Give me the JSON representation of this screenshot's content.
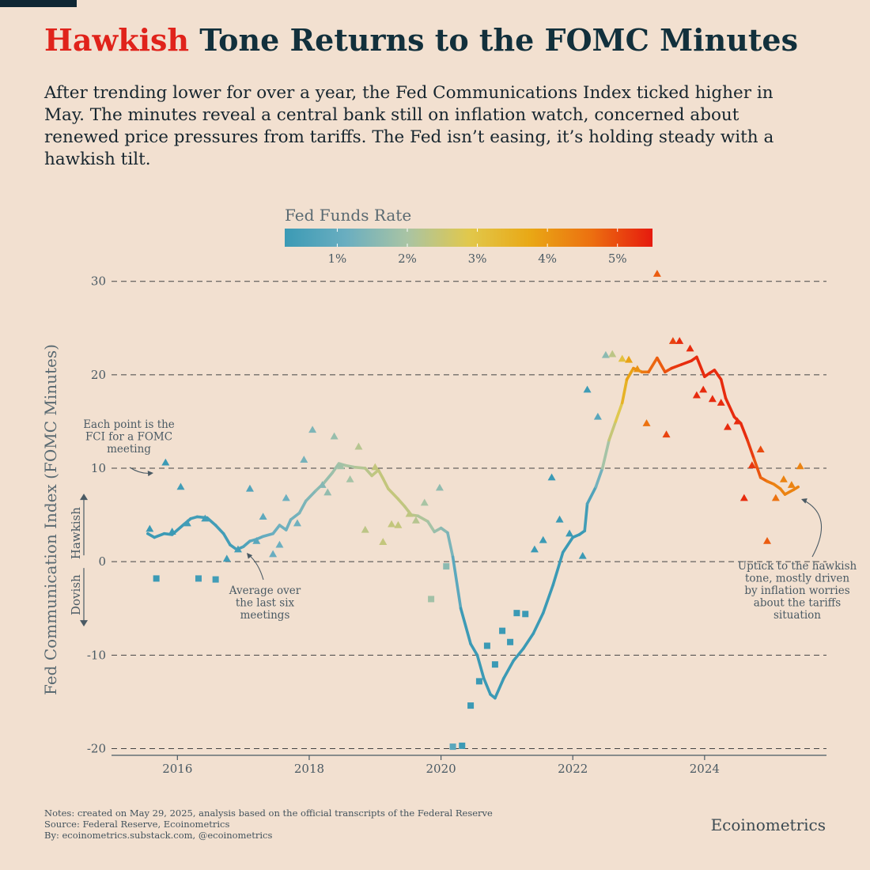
{
  "header": {
    "title_highlight": "Hawkish",
    "title_rest": " Tone Returns to the FOMC Minutes",
    "subtitle": "After trending lower for over a year, the Fed Communications Index ticked higher in May. The minutes reveal a central bank still on inflation watch, concerned about renewed price pressures from tariffs. The Fed isn’t easing, it’s holding steady with a hawkish tilt."
  },
  "colors": {
    "title_highlight": "#e0231b",
    "background": "#f2e0d0",
    "text": "#1f3442",
    "gridline": "#444444",
    "annotation": "#4a5a64",
    "scale": [
      "#3b9ab5",
      "#6aaec0",
      "#a9c4a4",
      "#e1c84c",
      "#e9a815",
      "#ec7010",
      "#e61a0e"
    ]
  },
  "chart_data": {
    "type": "line",
    "ylabel": "Fed Communication Index (FOMC Minutes)",
    "xlabel": "",
    "xlim": [
      2015.0,
      2025.85
    ],
    "ylim": [
      -22.5,
      31.5
    ],
    "grid": true,
    "x_ticks": [
      2016,
      2018,
      2020,
      2022,
      2024
    ],
    "x_tick_labels": [
      "2016",
      "2018",
      "2020",
      "2022",
      "2024"
    ],
    "y_ticks": [
      30,
      20,
      10,
      0,
      -10,
      -20
    ],
    "y_tick_labels": [
      "30",
      "20",
      "10",
      "0",
      "-10",
      "-20"
    ],
    "color_scale": {
      "title": "Fed Funds Rate",
      "range": [
        0.25,
        5.5
      ],
      "ticks": [
        1,
        2,
        3,
        4,
        5
      ],
      "tick_labels": [
        "1%",
        "2%",
        "3%",
        "4%",
        "5%"
      ]
    },
    "direction_labels": {
      "hawkish": "Hawkish",
      "dovish": "Dovish"
    },
    "series": [
      {
        "name": "Average over the last six meetings",
        "type": "line",
        "points": [
          [
            2015.55,
            3.0,
            0.13
          ],
          [
            2015.65,
            2.6,
            0.13
          ],
          [
            2015.8,
            3.0,
            0.2
          ],
          [
            2015.92,
            2.9,
            0.25
          ],
          [
            2016.1,
            4.0,
            0.38
          ],
          [
            2016.2,
            4.6,
            0.38
          ],
          [
            2016.3,
            4.8,
            0.38
          ],
          [
            2016.45,
            4.7,
            0.38
          ],
          [
            2016.58,
            3.9,
            0.38
          ],
          [
            2016.7,
            3.0,
            0.38
          ],
          [
            2016.8,
            1.8,
            0.4
          ],
          [
            2016.9,
            1.3,
            0.41
          ],
          [
            2017.0,
            1.6,
            0.6
          ],
          [
            2017.1,
            2.2,
            0.7
          ],
          [
            2017.2,
            2.4,
            0.9
          ],
          [
            2017.3,
            2.7,
            0.95
          ],
          [
            2017.45,
            3.0,
            1.1
          ],
          [
            2017.55,
            3.9,
            1.2
          ],
          [
            2017.65,
            3.4,
            1.2
          ],
          [
            2017.72,
            4.5,
            1.2
          ],
          [
            2017.85,
            5.2,
            1.3
          ],
          [
            2017.95,
            6.5,
            1.4
          ],
          [
            2018.1,
            7.6,
            1.5
          ],
          [
            2018.22,
            8.4,
            1.7
          ],
          [
            2018.35,
            9.5,
            1.8
          ],
          [
            2018.45,
            10.5,
            1.9
          ],
          [
            2018.55,
            10.3,
            1.95
          ],
          [
            2018.7,
            10.1,
            2.1
          ],
          [
            2018.85,
            10.0,
            2.2
          ],
          [
            2018.95,
            9.2,
            2.3
          ],
          [
            2019.05,
            9.8,
            2.4
          ],
          [
            2019.12,
            8.9,
            2.4
          ],
          [
            2019.2,
            7.8,
            2.4
          ],
          [
            2019.35,
            6.7,
            2.4
          ],
          [
            2019.45,
            5.9,
            2.35
          ],
          [
            2019.55,
            5.0,
            2.3
          ],
          [
            2019.65,
            4.9,
            2.2
          ],
          [
            2019.8,
            4.3,
            2.0
          ],
          [
            2019.9,
            3.2,
            1.9
          ],
          [
            2020.0,
            3.6,
            1.65
          ],
          [
            2020.1,
            3.1,
            1.5
          ],
          [
            2020.18,
            0.5,
            1.2
          ],
          [
            2020.3,
            -5.0,
            0.5
          ],
          [
            2020.45,
            -8.8,
            0.08
          ],
          [
            2020.55,
            -10.0,
            0.08
          ],
          [
            2020.65,
            -12.5,
            0.08
          ],
          [
            2020.75,
            -14.2,
            0.08
          ],
          [
            2020.82,
            -14.6,
            0.08
          ],
          [
            2020.95,
            -12.5,
            0.08
          ],
          [
            2021.1,
            -10.6,
            0.08
          ],
          [
            2021.25,
            -9.3,
            0.08
          ],
          [
            2021.4,
            -7.7,
            0.08
          ],
          [
            2021.55,
            -5.5,
            0.08
          ],
          [
            2021.7,
            -2.5,
            0.08
          ],
          [
            2021.85,
            1.0,
            0.08
          ],
          [
            2022.0,
            2.6,
            0.08
          ],
          [
            2022.1,
            2.9,
            0.12
          ],
          [
            2022.18,
            3.3,
            0.33
          ],
          [
            2022.22,
            6.2,
            0.4
          ],
          [
            2022.35,
            8.0,
            0.9
          ],
          [
            2022.45,
            10.0,
            1.6
          ],
          [
            2022.55,
            13.0,
            2.3
          ],
          [
            2022.65,
            15.0,
            2.6
          ],
          [
            2022.75,
            17.0,
            3.1
          ],
          [
            2022.82,
            19.5,
            3.85
          ],
          [
            2022.92,
            20.7,
            3.85
          ],
          [
            2023.05,
            20.3,
            4.4
          ],
          [
            2023.15,
            20.3,
            4.6
          ],
          [
            2023.28,
            21.8,
            4.83
          ],
          [
            2023.4,
            20.3,
            4.83
          ],
          [
            2023.5,
            20.7,
            5.08
          ],
          [
            2023.65,
            21.1,
            5.33
          ],
          [
            2023.8,
            21.5,
            5.33
          ],
          [
            2023.88,
            21.9,
            5.33
          ],
          [
            2024.0,
            19.8,
            5.33
          ],
          [
            2024.08,
            20.2,
            5.33
          ],
          [
            2024.15,
            20.5,
            5.33
          ],
          [
            2024.25,
            19.5,
            5.33
          ],
          [
            2024.32,
            17.5,
            5.33
          ],
          [
            2024.45,
            15.5,
            5.33
          ],
          [
            2024.55,
            14.8,
            5.33
          ],
          [
            2024.65,
            13.0,
            5.33
          ],
          [
            2024.75,
            11.0,
            5.0
          ],
          [
            2024.85,
            9.0,
            4.83
          ],
          [
            2024.95,
            8.6,
            4.6
          ],
          [
            2025.05,
            8.3,
            4.33
          ],
          [
            2025.15,
            7.8,
            4.33
          ],
          [
            2025.22,
            7.2,
            4.33
          ],
          [
            2025.35,
            7.7,
            4.33
          ],
          [
            2025.42,
            8.0,
            4.33
          ]
        ]
      },
      {
        "name": "FCI for each FOMC meeting",
        "type": "scatter",
        "points": [
          [
            2015.58,
            3.5,
            0.13
          ],
          [
            2015.68,
            -1.8,
            0.13
          ],
          [
            2015.82,
            10.6,
            0.2
          ],
          [
            2015.92,
            3.2,
            0.25
          ],
          [
            2016.05,
            8.0,
            0.38
          ],
          [
            2016.15,
            4.1,
            0.38
          ],
          [
            2016.32,
            -1.8,
            0.38
          ],
          [
            2016.42,
            4.6,
            0.38
          ],
          [
            2016.58,
            -1.9,
            0.38
          ],
          [
            2016.75,
            0.3,
            0.38
          ],
          [
            2016.92,
            1.3,
            0.41
          ],
          [
            2017.1,
            7.8,
            0.7
          ],
          [
            2017.2,
            2.2,
            0.8
          ],
          [
            2017.3,
            4.8,
            0.9
          ],
          [
            2017.45,
            0.8,
            1.1
          ],
          [
            2017.55,
            1.8,
            1.15
          ],
          [
            2017.65,
            6.8,
            1.15
          ],
          [
            2017.82,
            4.1,
            1.2
          ],
          [
            2017.92,
            10.9,
            1.3
          ],
          [
            2018.05,
            14.1,
            1.4
          ],
          [
            2018.2,
            8.2,
            1.5
          ],
          [
            2018.28,
            7.4,
            1.7
          ],
          [
            2018.38,
            13.4,
            1.75
          ],
          [
            2018.48,
            10.2,
            1.9
          ],
          [
            2018.62,
            8.8,
            1.95
          ],
          [
            2018.75,
            12.3,
            2.2
          ],
          [
            2018.85,
            3.4,
            2.3
          ],
          [
            2019.0,
            10.1,
            2.4
          ],
          [
            2019.12,
            2.1,
            2.4
          ],
          [
            2019.25,
            4.0,
            2.4
          ],
          [
            2019.35,
            3.9,
            2.4
          ],
          [
            2019.52,
            5.1,
            2.35
          ],
          [
            2019.62,
            4.4,
            2.2
          ],
          [
            2019.75,
            6.3,
            2.0
          ],
          [
            2019.85,
            -4.0,
            1.9
          ],
          [
            2019.98,
            7.9,
            1.65
          ],
          [
            2020.08,
            -0.5,
            1.6
          ],
          [
            2020.18,
            -19.8,
            0.8
          ],
          [
            2020.32,
            -19.7,
            0.08
          ],
          [
            2020.45,
            -15.4,
            0.08
          ],
          [
            2020.58,
            -12.8,
            0.08
          ],
          [
            2020.7,
            -9.0,
            0.08
          ],
          [
            2020.82,
            -11.0,
            0.08
          ],
          [
            2020.93,
            -7.4,
            0.08
          ],
          [
            2021.05,
            -8.6,
            0.08
          ],
          [
            2021.15,
            -5.5,
            0.08
          ],
          [
            2021.28,
            -5.6,
            0.08
          ],
          [
            2021.42,
            1.3,
            0.08
          ],
          [
            2021.55,
            2.3,
            0.08
          ],
          [
            2021.68,
            9.0,
            0.08
          ],
          [
            2021.8,
            4.5,
            0.08
          ],
          [
            2021.95,
            3.0,
            0.08
          ],
          [
            2022.15,
            0.6,
            0.12
          ],
          [
            2022.22,
            18.4,
            0.33
          ],
          [
            2022.38,
            15.5,
            0.8
          ],
          [
            2022.5,
            22.1,
            1.6
          ],
          [
            2022.6,
            22.2,
            2.3
          ],
          [
            2022.75,
            21.7,
            3.1
          ],
          [
            2022.85,
            21.6,
            3.85
          ],
          [
            2022.98,
            20.6,
            4.1
          ],
          [
            2023.12,
            14.8,
            4.6
          ],
          [
            2023.28,
            30.8,
            4.83
          ],
          [
            2023.42,
            13.6,
            5.08
          ],
          [
            2023.52,
            23.6,
            5.08
          ],
          [
            2023.62,
            23.6,
            5.33
          ],
          [
            2023.78,
            22.8,
            5.33
          ],
          [
            2023.88,
            17.8,
            5.33
          ],
          [
            2023.98,
            18.4,
            5.33
          ],
          [
            2024.12,
            17.4,
            5.33
          ],
          [
            2024.25,
            17.0,
            5.33
          ],
          [
            2024.35,
            14.4,
            5.33
          ],
          [
            2024.5,
            15.0,
            5.33
          ],
          [
            2024.6,
            6.8,
            5.33
          ],
          [
            2024.72,
            10.3,
            5.2
          ],
          [
            2024.85,
            12.0,
            5.0
          ],
          [
            2024.95,
            2.2,
            4.83
          ],
          [
            2025.08,
            6.8,
            4.6
          ],
          [
            2025.2,
            8.8,
            4.33
          ],
          [
            2025.32,
            8.2,
            4.33
          ],
          [
            2025.45,
            10.2,
            4.33
          ]
        ]
      }
    ],
    "annotations": [
      {
        "id": "point",
        "text": [
          "Each point is the",
          "FCI for a FOMC",
          "meeting"
        ]
      },
      {
        "id": "average",
        "text": [
          "Average over",
          "the last six",
          "meetings"
        ]
      },
      {
        "id": "uptick",
        "text": [
          "Uptick to the hawkish",
          "tone, mostly driven",
          "by inflation worries",
          "about the tariffs",
          "situation"
        ]
      }
    ]
  },
  "footer": {
    "notes": [
      "Notes: created on May 29, 2025, analysis based on the official transcripts of the Federal Reserve",
      "Source: Federal Reserve, Ecoinometrics",
      "By: ecoinometrics.substack.com, @ecoinometrics"
    ],
    "brand": "Ecoinometrics"
  }
}
